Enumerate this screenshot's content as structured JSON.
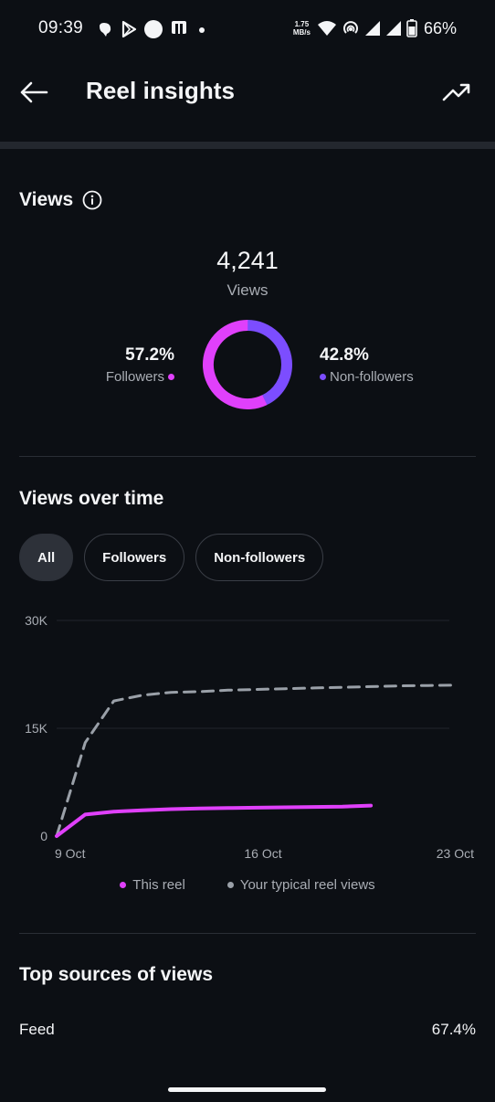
{
  "status_bar": {
    "time": "09:39",
    "speed_value": "1.75",
    "speed_unit": "MB/s",
    "battery": "66%",
    "icons": [
      "app-notification-icon",
      "play-store-icon",
      "circle-notification-icon",
      "nfc-icon",
      "more-dot-icon",
      "wifi-icon",
      "hotspot-icon",
      "signal-icon",
      "signal-icon",
      "battery-icon"
    ]
  },
  "header": {
    "title": "Reel insights",
    "back_icon": "arrow-left-icon",
    "trend_icon": "trending-up-icon"
  },
  "views": {
    "title": "Views",
    "total": "4,241",
    "total_label": "Views",
    "followers_pct": "57.2%",
    "followers_label": "Followers",
    "non_followers_pct": "42.8%",
    "non_followers_label": "Non-followers",
    "followers_fraction": 0.572,
    "colors": {
      "followers": "#e040fb",
      "non_followers": "#7c4dff"
    }
  },
  "views_over_time": {
    "title": "Views over time",
    "chips": [
      {
        "label": "All",
        "active": true
      },
      {
        "label": "Followers",
        "active": false
      },
      {
        "label": "Non-followers",
        "active": false
      }
    ]
  },
  "chart_data": {
    "type": "line",
    "y_ticks": [
      "30K",
      "15K",
      "0"
    ],
    "x_ticks": [
      "9 Oct",
      "16 Oct",
      "23 Oct"
    ],
    "ylim": [
      0,
      30000
    ],
    "xlim": [
      "2024-10-09",
      "2024-10-23"
    ],
    "grid": true,
    "legend_position": "bottom",
    "series": [
      {
        "name": "This reel",
        "color": "#e040fb",
        "style": "solid",
        "x": [
          "2024-10-09",
          "2024-10-10",
          "2024-10-11",
          "2024-10-12",
          "2024-10-13",
          "2024-10-14",
          "2024-10-15",
          "2024-10-16",
          "2024-10-17",
          "2024-10-18",
          "2024-10-19",
          "2024-10-20"
        ],
        "values": [
          0,
          3000,
          3400,
          3600,
          3750,
          3850,
          3900,
          3950,
          4000,
          4050,
          4100,
          4241
        ]
      },
      {
        "name": "Your typical reel views",
        "color": "#9aa0a8",
        "style": "dashed",
        "x": [
          "2024-10-09",
          "2024-10-10",
          "2024-10-11",
          "2024-10-12",
          "2024-10-13",
          "2024-10-14",
          "2024-10-15",
          "2024-10-16",
          "2024-10-17",
          "2024-10-18",
          "2024-10-19",
          "2024-10-20",
          "2024-10-21",
          "2024-10-22",
          "2024-10-23"
        ],
        "values": [
          0,
          13000,
          18800,
          19600,
          20000,
          20100,
          20300,
          20400,
          20500,
          20600,
          20700,
          20800,
          20900,
          20950,
          21000
        ]
      }
    ]
  },
  "top_sources": {
    "title": "Top sources of views",
    "rows": [
      {
        "label": "Feed",
        "value": "67.4%"
      }
    ]
  }
}
